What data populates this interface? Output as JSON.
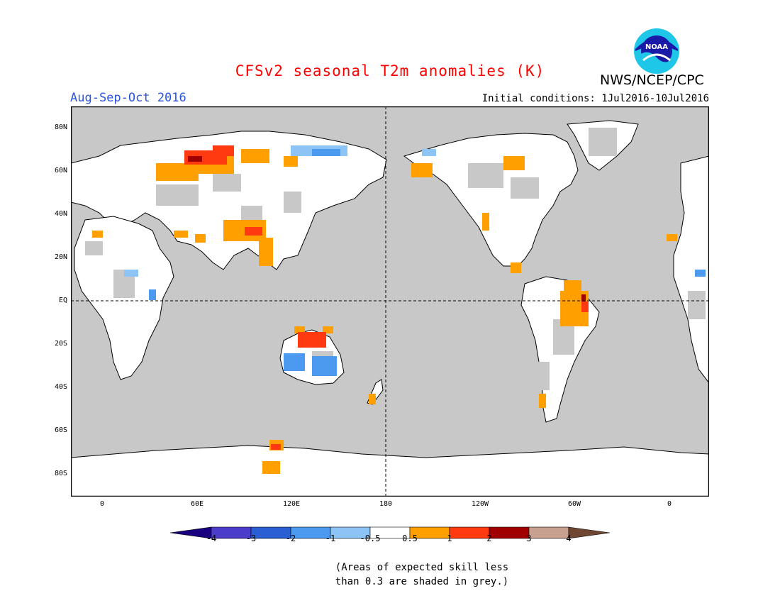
{
  "header": {
    "title": "CFSv2 seasonal T2m anomalies (K)",
    "title_color": "#ff0000",
    "agency": "NWS/NCEP/CPC",
    "season": "Aug-Sep-Oct 2016",
    "season_color": "#2a55e0",
    "initial_conditions": "Initial conditions: 1Jul2016-10Jul2016",
    "logo_text": "NOAA"
  },
  "map": {
    "projection": "equirectangular, centered at 180",
    "background_color": "#c8c8c8",
    "lat_labels": [
      "80N",
      "60N",
      "40N",
      "20N",
      "EQ",
      "20S",
      "40S",
      "60S",
      "80S"
    ],
    "lon_labels": [
      "0",
      "60E",
      "120E",
      "180",
      "120W",
      "60W",
      "0"
    ],
    "dashed_reference_lines": [
      "EQ",
      "180"
    ]
  },
  "colorbar": {
    "bins": [
      {
        "from": "<-4",
        "color": "#1a0080"
      },
      {
        "from": "-4",
        "to": "-3",
        "color": "#4b3ccc"
      },
      {
        "from": "-3",
        "to": "-2",
        "color": "#2a5fd4"
      },
      {
        "from": "-2",
        "to": "-1",
        "color": "#4b9af0"
      },
      {
        "from": "-1",
        "to": "-0.5",
        "color": "#8cc4f5"
      },
      {
        "from": "-0.5",
        "to": "0.5",
        "color": "#ffffff"
      },
      {
        "from": "0.5",
        "to": "1",
        "color": "#ffa000"
      },
      {
        "from": "1",
        "to": "2",
        "color": "#ff3a10"
      },
      {
        "from": "2",
        "to": "3",
        "color": "#a00000"
      },
      {
        "from": "3",
        "to": "4",
        "color": "#c8a090"
      },
      {
        "from": ">4",
        "color": "#6e4632"
      }
    ],
    "tick_labels": [
      "-4",
      "-3",
      "-2",
      "-1",
      "-0.5",
      "0.5",
      "1",
      "2",
      "3",
      "4"
    ]
  },
  "note": {
    "line1": "(Areas of expected skill less",
    "line2": "than 0.3 are shaded in grey.)"
  }
}
